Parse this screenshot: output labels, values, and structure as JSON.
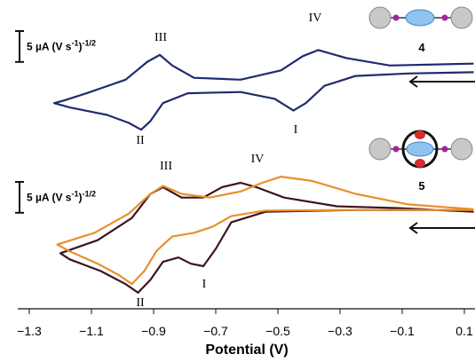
{
  "chart_data": {
    "type": "line",
    "xlabel": "Potential (V)",
    "xlim": [
      -1.3,
      0.1
    ],
    "ylim": [
      0,
      50
    ],
    "xticks": [
      {
        "value": -1.3,
        "label": "−1.3"
      },
      {
        "value": -1.1,
        "label": "−1.1"
      },
      {
        "value": -0.9,
        "label": "−0.9"
      },
      {
        "value": -0.7,
        "label": "−0.7"
      },
      {
        "value": -0.5,
        "label": "−0.5"
      },
      {
        "value": -0.3,
        "label": "−0.3"
      },
      {
        "value": -0.1,
        "label": "−0.1"
      },
      0.1
    ],
    "scale_bars": [
      {
        "label": [
          "5 µA (V s",
          "-1",
          ")",
          "-1/2"
        ],
        "value": 5
      },
      {
        "label": [
          "5 µA (V s",
          "-1",
          ")",
          "-1/2"
        ],
        "value": 5
      }
    ],
    "annotations": [
      "III",
      "IV",
      "II",
      "I",
      "4",
      "III",
      "IV",
      "II",
      "I",
      "5"
    ],
    "series": [
      {
        "color": "#1f2b6e",
        "x": [
          0.13,
          -0.14,
          -0.28,
          -0.37,
          -0.42,
          -0.49,
          -0.62,
          -0.77,
          -0.84,
          -0.88,
          -0.92,
          -0.99,
          -1.11,
          -1.19,
          -1.22,
          -1.17,
          -1.05,
          -0.98,
          -0.94,
          -0.91,
          -0.87,
          -0.79,
          -0.62,
          -0.51,
          -0.45,
          -0.41,
          -0.35,
          -0.25,
          -0.08,
          0.13
        ],
        "values": [
          39.7,
          39.4,
          40.6,
          41.9,
          40.9,
          38.6,
          37.1,
          37.4,
          39.4,
          41.1,
          40.0,
          37.1,
          35.0,
          33.7,
          33.3,
          32.6,
          31.4,
          30.1,
          29.0,
          30.4,
          33.3,
          34.9,
          35.1,
          34.0,
          32.1,
          33.3,
          36.1,
          37.7,
          38.1,
          38.3
        ]
      },
      {
        "color": "#3d1322",
        "x": [
          0.13,
          -0.11,
          -0.31,
          -0.48,
          -0.57,
          -0.62,
          -0.68,
          -0.74,
          -0.81,
          -0.87,
          -0.91,
          -0.97,
          -1.08,
          -1.2,
          -1.17,
          -1.07,
          -0.99,
          -0.95,
          -0.91,
          -0.87,
          -0.82,
          -0.78,
          -0.74,
          -0.7,
          -0.65,
          -0.54,
          -0.25,
          0.13
        ],
        "values": [
          15.7,
          16.3,
          16.6,
          18.0,
          19.7,
          20.4,
          19.7,
          18.0,
          18.0,
          19.7,
          18.6,
          14.7,
          11.1,
          9.0,
          8.0,
          6.1,
          4.0,
          2.6,
          4.7,
          7.6,
          8.3,
          7.3,
          6.9,
          9.7,
          14.0,
          15.7,
          16.0,
          16.0
        ]
      },
      {
        "color": "#e8902c",
        "x": [
          0.13,
          -0.08,
          -0.25,
          -0.39,
          -0.49,
          -0.55,
          -0.62,
          -0.72,
          -0.81,
          -0.87,
          -0.91,
          -0.98,
          -1.09,
          -1.21,
          -1.17,
          -1.08,
          -1.01,
          -0.97,
          -0.93,
          -0.89,
          -0.84,
          -0.77,
          -0.71,
          -0.65,
          -0.54,
          -0.25,
          0.13
        ],
        "values": [
          16.1,
          16.9,
          18.6,
          20.7,
          21.4,
          20.4,
          19.0,
          18.0,
          18.6,
          19.9,
          18.6,
          15.4,
          12.3,
          10.4,
          9.3,
          7.3,
          5.4,
          4.0,
          6.1,
          9.4,
          11.7,
          12.3,
          13.3,
          15.0,
          15.9,
          16.0,
          16.0
        ]
      }
    ]
  }
}
